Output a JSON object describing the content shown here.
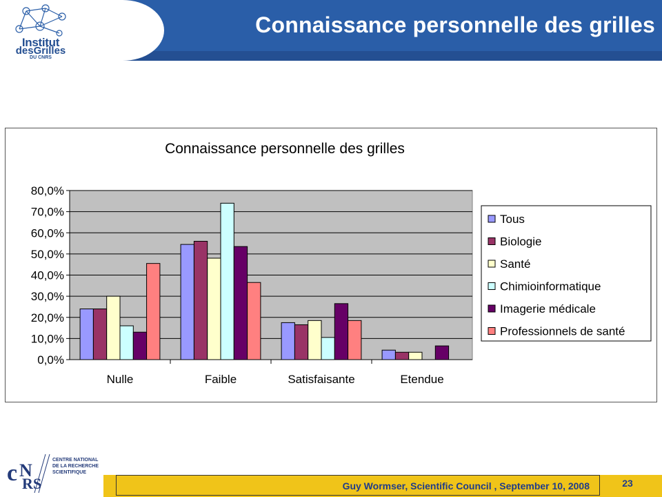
{
  "header": {
    "title": "Connaissance personnelle des grilles",
    "logo": {
      "line1": "Institut",
      "line2": "desGrilles",
      "line3": "DU CNRS"
    },
    "accent": "#2a5ea8"
  },
  "footer": {
    "text": "Guy Wormser, Scientific Council , September 10, 2008",
    "page_number": "23",
    "cnrs_label": [
      "CENTRE NATIONAL",
      "DE LA RECHERCHE",
      "SCIENTIFIQUE"
    ],
    "bar_color": "#f0c419"
  },
  "chart_data": {
    "type": "bar",
    "title": "Connaissance personnelle des grilles",
    "categories": [
      "Nulle",
      "Faible",
      "Satisfaisante",
      "Etendue"
    ],
    "yticks": [
      "0,0%",
      "10,0%",
      "20,0%",
      "30,0%",
      "40,0%",
      "50,0%",
      "60,0%",
      "70,0%",
      "80,0%"
    ],
    "ylim": [
      0,
      80
    ],
    "grid": true,
    "legend_position": "right",
    "series": [
      {
        "name": "Tous",
        "color": "#9999ff",
        "values": [
          24,
          54.5,
          17.5,
          4.5
        ]
      },
      {
        "name": "Biologie",
        "color": "#993366",
        "values": [
          24,
          56,
          16.5,
          3.5
        ]
      },
      {
        "name": "Santé",
        "color": "#ffffcc",
        "values": [
          30,
          48,
          18.5,
          3.5
        ]
      },
      {
        "name": "Chimioinformatique",
        "color": "#ccffff",
        "values": [
          16,
          74,
          10.5,
          0
        ]
      },
      {
        "name": "Imagerie médicale",
        "color": "#660066",
        "values": [
          13,
          53.5,
          26.5,
          6.5
        ]
      },
      {
        "name": "Professionnels de santé",
        "color": "#ff8080",
        "values": [
          45.5,
          36.5,
          18.5,
          0
        ]
      }
    ]
  }
}
